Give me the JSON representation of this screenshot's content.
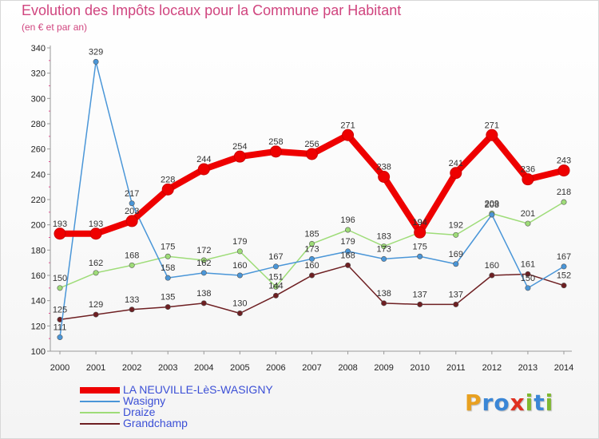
{
  "title": "Evolution des Impôts locaux pour la Commune par Habitant",
  "subtitle": "(en € et par an)",
  "logo": {
    "text": "Proxiti",
    "letters": [
      {
        "ch": "P",
        "color": "#e8a020"
      },
      {
        "ch": "r",
        "color": "#3a86d6"
      },
      {
        "ch": "o",
        "color": "#3a86d6"
      },
      {
        "ch": "x",
        "color": "#e03020"
      },
      {
        "ch": "i",
        "color": "#80b830"
      },
      {
        "ch": "t",
        "color": "#3a86d6"
      },
      {
        "ch": "i",
        "color": "#80b830"
      }
    ]
  },
  "chart_data": {
    "type": "line",
    "title": "Evolution des Impôts locaux pour la Commune par Habitant",
    "subtitle": "(en € et par an)",
    "x": [
      2000,
      2001,
      2002,
      2003,
      2004,
      2005,
      2006,
      2007,
      2008,
      2009,
      2010,
      2011,
      2012,
      2013,
      2014
    ],
    "ylim": [
      100,
      340
    ],
    "yticks": [
      100,
      120,
      140,
      160,
      180,
      200,
      220,
      240,
      260,
      280,
      300,
      320,
      340
    ],
    "grid": false,
    "legend_position": "bottom-left",
    "series": [
      {
        "name": "LA NEUVILLE-LèS-WASIGNY",
        "color": "#ee0000",
        "values": [
          193,
          193,
          203,
          228,
          244,
          254,
          258,
          256,
          271,
          238,
          194,
          241,
          271,
          236,
          243
        ]
      },
      {
        "name": "Wasigny",
        "color": "#4a96d8",
        "values": [
          111,
          329,
          217,
          158,
          162,
          160,
          167,
          173,
          179,
          173,
          175,
          169,
          208,
          150,
          167
        ]
      },
      {
        "name": "Draize",
        "color": "#9edc78",
        "values": [
          150,
          162,
          168,
          175,
          172,
          179,
          151,
          185,
          196,
          183,
          194,
          192,
          209,
          201,
          218
        ]
      },
      {
        "name": "Grandchamp",
        "color": "#6e1f22",
        "values": [
          125,
          129,
          133,
          135,
          138,
          130,
          144,
          160,
          168,
          138,
          137,
          137,
          160,
          161,
          152
        ]
      }
    ]
  }
}
